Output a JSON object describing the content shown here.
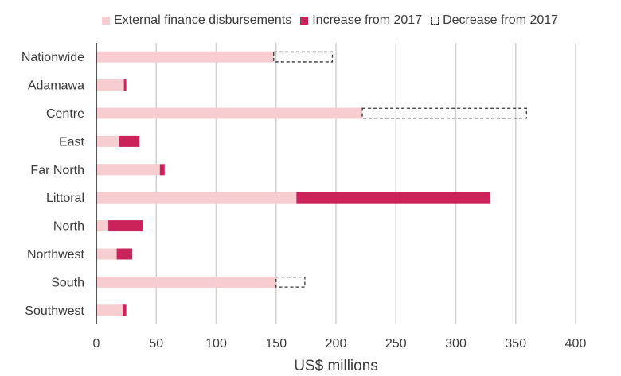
{
  "chart_data": {
    "type": "bar",
    "orientation": "horizontal",
    "stacked": true,
    "categories": [
      "Nationwide",
      "Adamawa",
      "Centre",
      "East",
      "Far North",
      "Littoral",
      "North",
      "Northwest",
      "South",
      "Southwest"
    ],
    "series": [
      {
        "name": "External finance disbursements",
        "values": [
          148,
          23,
          222,
          19,
          53,
          167,
          10,
          17,
          150,
          22
        ],
        "color": "#f7cdd1",
        "style": "solid"
      },
      {
        "name": "Increase from 2017",
        "values": [
          0,
          2,
          0,
          17,
          4,
          162,
          29,
          13,
          0,
          3
        ],
        "color": "#c9235a",
        "style": "solid"
      },
      {
        "name": "Decrease from 2017",
        "values": [
          49,
          0,
          137,
          0,
          0,
          0,
          0,
          0,
          24,
          0
        ],
        "color": "#333333",
        "style": "dashed-outline"
      }
    ],
    "xlabel": "US$ millions",
    "ylabel": "",
    "xlim": [
      0,
      400
    ],
    "xticks": [
      0,
      50,
      100,
      150,
      200,
      250,
      300,
      350,
      400
    ],
    "grid": "vertical",
    "legend_position": "top"
  }
}
